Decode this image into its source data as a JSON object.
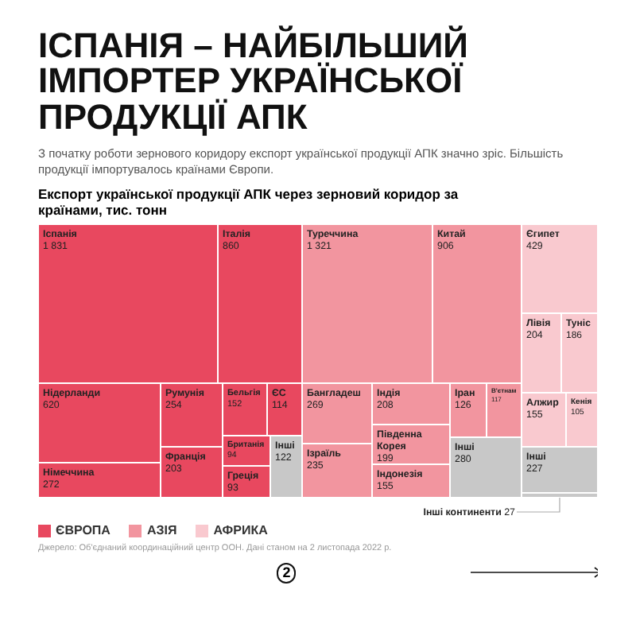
{
  "chart_data": {
    "type": "other",
    "title": "ІСПАНІЯ – НАЙБІЛЬШИЙ ІМПОРТЕР УКРАЇНСЬКОЇ ПРОДУКЦІЇ АПК",
    "subtitle": "З початку роботи зернового коридору експорт української продукції АПК значно зріс. Більшість продукції імпортувалось країнами Європи.",
    "annotations": [
      "Експорт української продукції АПК через зерновий коридор за країнами, тис. тонн",
      "Джерело: Об'єднаний координаційний центр ООН. Дані станом на 2 листопада 2022 р.",
      "2"
    ],
    "data_labels": true,
    "legend": "bottom",
    "categories": [
      "Іспанія",
      "Італія",
      "Нідерланди",
      "Німеччина",
      "Румунія",
      "Франція",
      "Бельгія",
      "ЄС",
      "Британія",
      "Греція",
      "Інші",
      "Туреччина",
      "Китай",
      "Бангладеш",
      "Ізраїль",
      "Індія",
      "Південна Корея",
      "Індонезія",
      "Іран",
      "В'єтнам",
      "Інші",
      "Єгипет",
      "Лівія",
      "Туніс",
      "Алжир",
      "Кенія",
      "Інші",
      "Інші континенти"
    ],
    "series": [
      {
        "name": "ЄВРОПА",
        "color": "#e8485f",
        "values": [
          1831,
          860,
          620,
          272,
          254,
          203,
          152,
          114,
          94,
          93,
          122,
          null,
          null,
          null,
          null,
          null,
          null,
          null,
          null,
          null,
          null,
          null,
          null,
          null,
          null,
          null,
          null,
          null
        ],
        "colors": [
          "#e8485f",
          "#e8485f",
          "#e8485f",
          "#e8485f",
          "#e8485f",
          "#e8485f",
          "#e8485f",
          "#e8485f",
          "#e8485f",
          "#e8485f",
          "#c8c8c8",
          null,
          null,
          null,
          null,
          null,
          null,
          null,
          null,
          null,
          null,
          null,
          null,
          null,
          null,
          null,
          null,
          null
        ]
      },
      {
        "name": "АЗІЯ",
        "color": "#f2959f",
        "values": [
          null,
          null,
          null,
          null,
          null,
          null,
          null,
          null,
          null,
          null,
          null,
          1321,
          906,
          269,
          235,
          208,
          199,
          155,
          126,
          117,
          280,
          null,
          null,
          null,
          null,
          null,
          null,
          null
        ],
        "colors": [
          null,
          null,
          null,
          null,
          null,
          null,
          null,
          null,
          null,
          null,
          null,
          "#f2959f",
          "#f2959f",
          "#f2959f",
          "#f2959f",
          "#f2959f",
          "#f2959f",
          "#f2959f",
          "#f2959f",
          "#f2959f",
          "#c8c8c8",
          null,
          null,
          null,
          null,
          null,
          null,
          null
        ]
      },
      {
        "name": "АФРИКА",
        "color": "#f9c9cf",
        "values": [
          null,
          null,
          null,
          null,
          null,
          null,
          null,
          null,
          null,
          null,
          null,
          null,
          null,
          null,
          null,
          null,
          null,
          null,
          null,
          null,
          null,
          429,
          204,
          186,
          155,
          105,
          227,
          null
        ],
        "colors": [
          null,
          null,
          null,
          null,
          null,
          null,
          null,
          null,
          null,
          null,
          null,
          null,
          null,
          null,
          null,
          null,
          null,
          null,
          null,
          null,
          null,
          "#f9c9cf",
          "#f9c9cf",
          "#f9c9cf",
          "#f9c9cf",
          "#f9c9cf",
          "#c8c8c8",
          null
        ]
      },
      {
        "color": "#c8c8c8",
        "values": [
          null,
          null,
          null,
          null,
          null,
          null,
          null,
          null,
          null,
          null,
          null,
          null,
          null,
          null,
          null,
          null,
          null,
          null,
          null,
          null,
          null,
          null,
          null,
          null,
          null,
          null,
          null,
          27
        ]
      }
    ]
  }
}
